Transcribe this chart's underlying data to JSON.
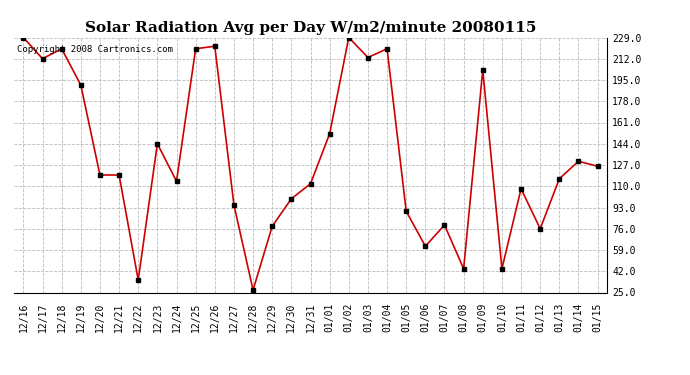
{
  "title": "Solar Radiation Avg per Day W/m2/minute 20080115",
  "copyright": "Copyright 2008 Cartronics.com",
  "labels": [
    "12/16",
    "12/17",
    "12/18",
    "12/19",
    "12/20",
    "12/21",
    "12/22",
    "12/23",
    "12/24",
    "12/25",
    "12/26",
    "12/27",
    "12/28",
    "12/29",
    "12/30",
    "12/31",
    "01/01",
    "01/02",
    "01/03",
    "01/04",
    "01/05",
    "01/06",
    "01/07",
    "01/08",
    "01/09",
    "01/10",
    "01/11",
    "01/12",
    "01/13",
    "01/14",
    "01/15"
  ],
  "values": [
    229,
    212,
    220,
    191,
    119,
    119,
    35,
    144,
    114,
    220,
    222,
    95,
    27,
    78,
    100,
    112,
    152,
    229,
    213,
    220,
    90,
    62,
    79,
    44,
    203,
    44,
    108,
    76,
    116,
    130,
    126
  ],
  "line_color": "#cc0000",
  "marker_color": "#000000",
  "bg_color": "#ffffff",
  "plot_bg_color": "#ffffff",
  "grid_color": "#bbbbbb",
  "ylim": [
    25.0,
    229.0
  ],
  "yticks": [
    25.0,
    42.0,
    59.0,
    76.0,
    93.0,
    110.0,
    127.0,
    144.0,
    161.0,
    178.0,
    195.0,
    212.0,
    229.0
  ],
  "title_fontsize": 11,
  "tick_fontsize": 7,
  "copyright_fontsize": 6.5
}
